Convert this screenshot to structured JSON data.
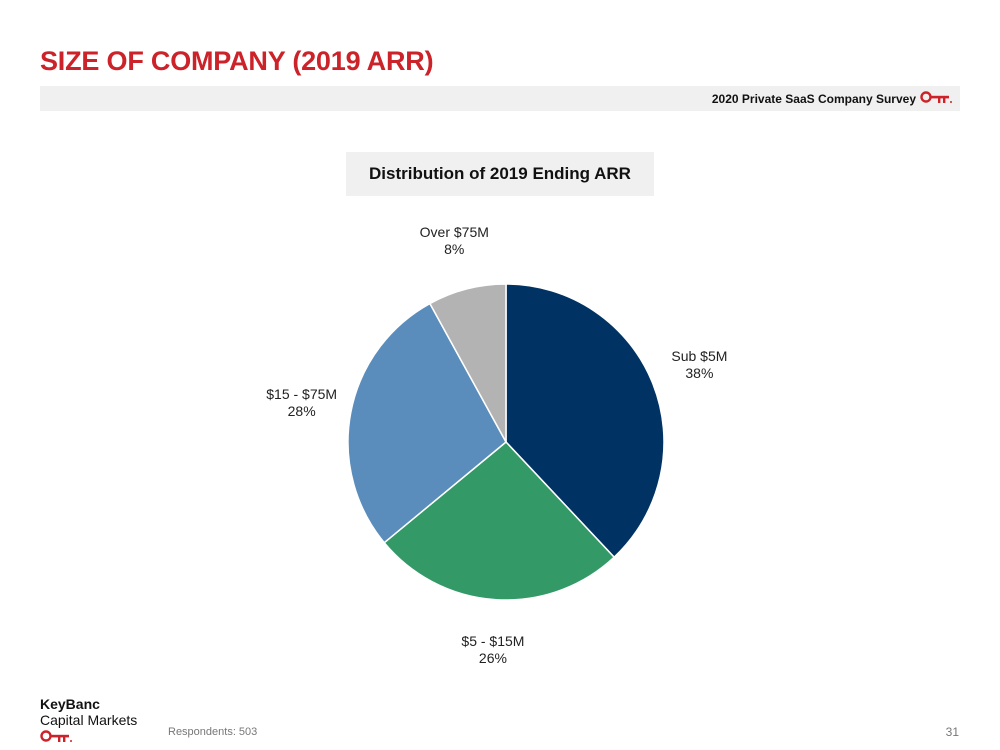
{
  "slide": {
    "title": "SIZE OF COMPANY (2019 ARR)",
    "survey_label": "2020 Private SaaS Company Survey",
    "footnote": "Respondents: 503",
    "page_number": "31",
    "brand_name": "KeyBanc",
    "brand_sub": "Capital Markets",
    "accent_color": "#cc2229"
  },
  "chart_data": {
    "type": "pie",
    "title": "Distribution of 2019 Ending ARR",
    "slices": [
      {
        "label": "Sub $5M",
        "value": 38,
        "value_label": "38%",
        "color": "#003263"
      },
      {
        "label": "$5 - $15M",
        "value": 26,
        "value_label": "26%",
        "color": "#339966"
      },
      {
        "label": "$15 - $75M",
        "value": 28,
        "value_label": "28%",
        "color": "#5a8dbb"
      },
      {
        "label": "Over $75M",
        "value": 8,
        "value_label": "8%",
        "color": "#b3b3b3"
      }
    ]
  }
}
